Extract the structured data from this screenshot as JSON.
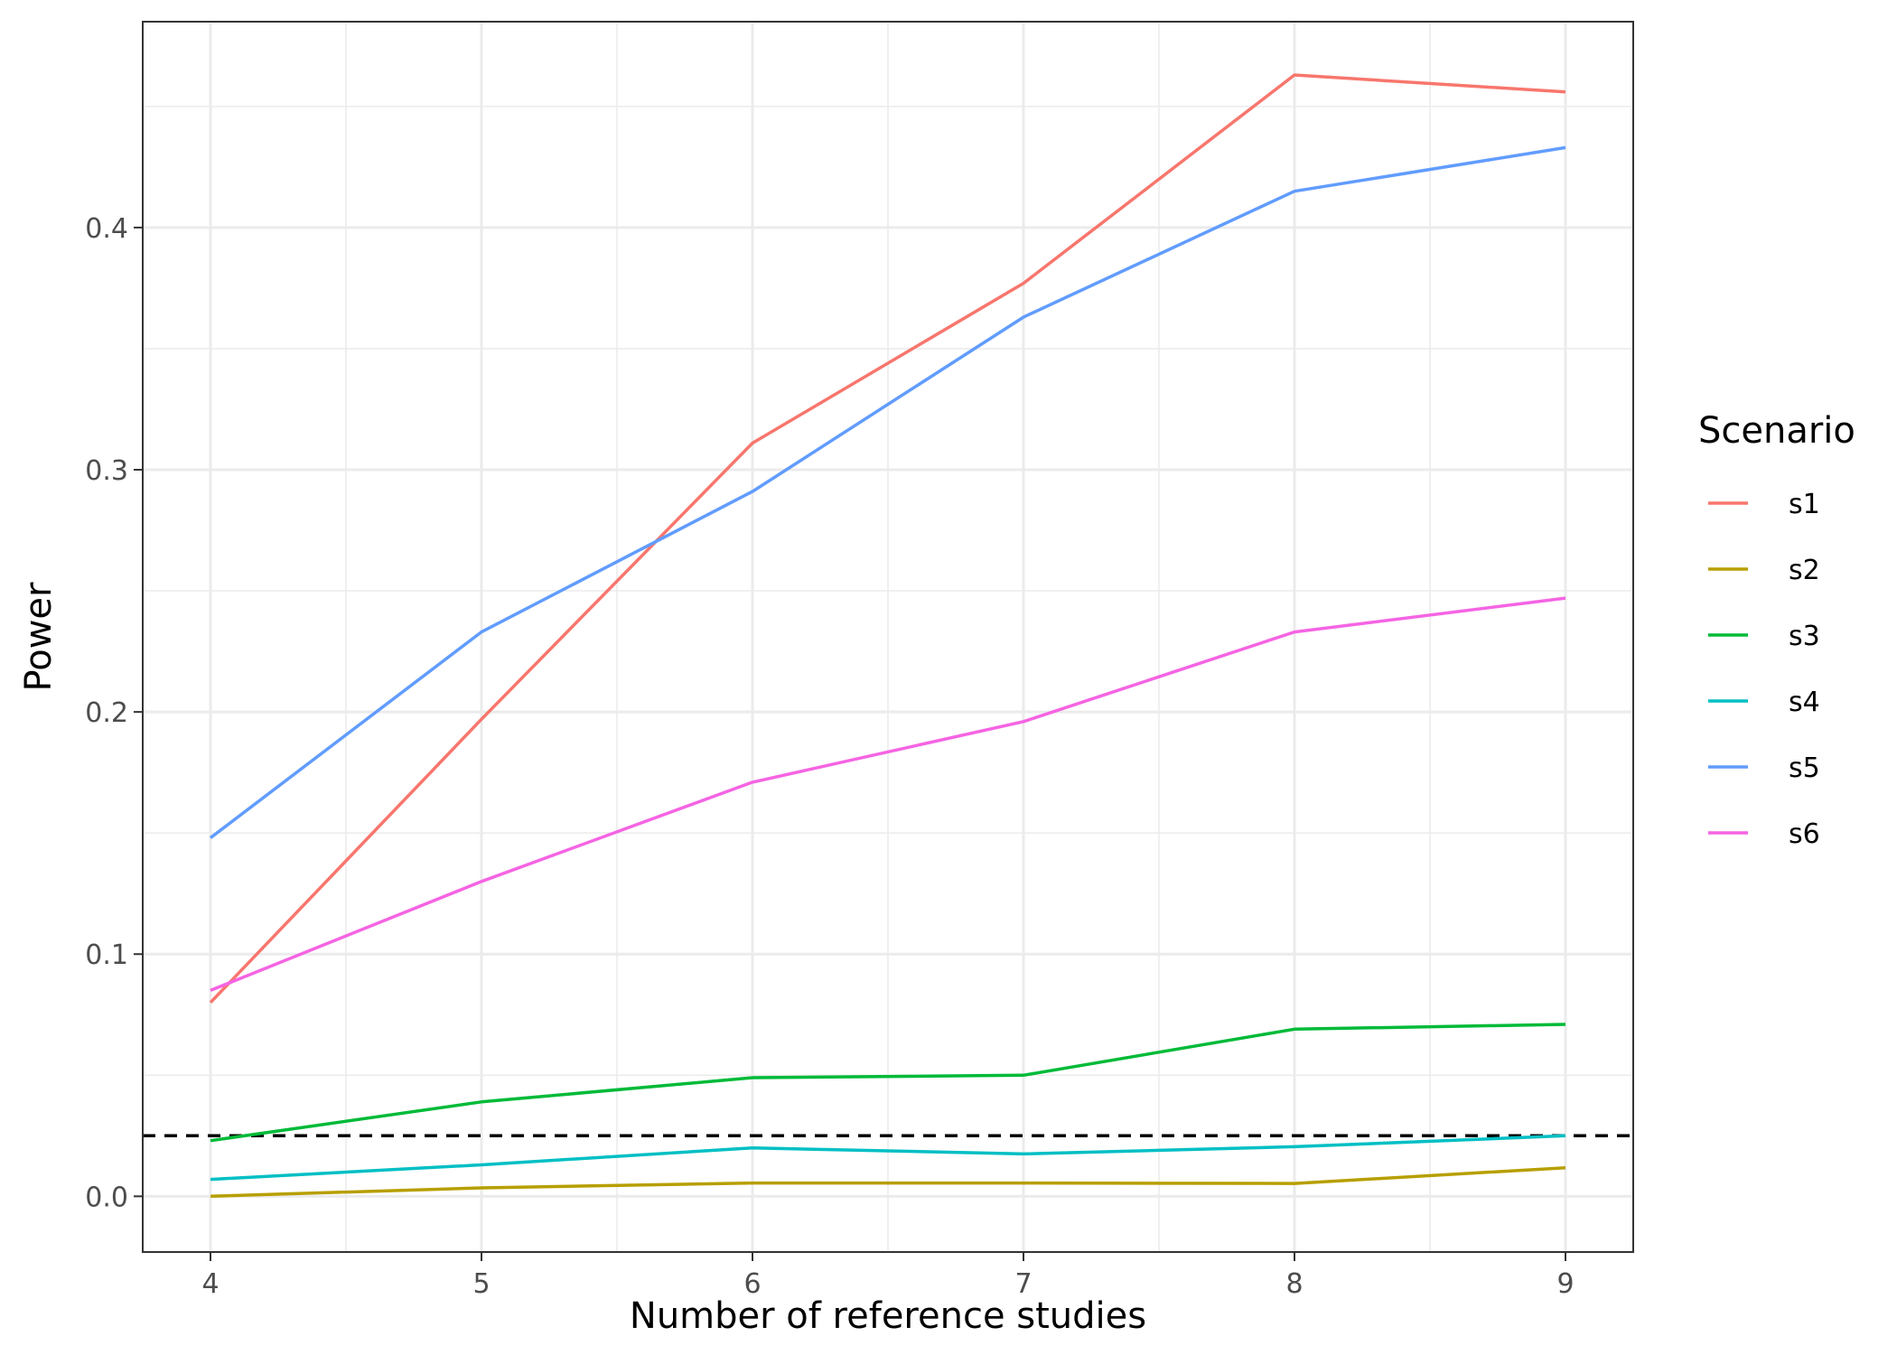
{
  "chart_data": {
    "type": "line",
    "xlabel": "Number of reference studies",
    "ylabel": "Power",
    "x": [
      4,
      5,
      6,
      7,
      8,
      9
    ],
    "xlim": [
      3.75,
      9.25
    ],
    "ylim": [
      -0.023,
      0.485
    ],
    "x_ticks": [
      4,
      5,
      6,
      7,
      8,
      9
    ],
    "x_tick_labels": [
      "4",
      "5",
      "6",
      "7",
      "8",
      "9"
    ],
    "y_ticks": [
      0.0,
      0.1,
      0.2,
      0.3,
      0.4
    ],
    "y_tick_labels": [
      "0.0",
      "0.1",
      "0.2",
      "0.3",
      "0.4"
    ],
    "grid": true,
    "legend_title": "Scenario",
    "legend_position": "right",
    "reference_line": {
      "y": 0.025,
      "style": "dashed",
      "color": "#000000"
    },
    "series": [
      {
        "name": "s1",
        "color": "#F8766D",
        "values": [
          0.08,
          0.197,
          0.311,
          0.377,
          0.463,
          0.456
        ]
      },
      {
        "name": "s2",
        "color": "#B79F00",
        "values": [
          0.0,
          0.0035,
          0.0055,
          0.0055,
          0.0053,
          0.0118
        ]
      },
      {
        "name": "s3",
        "color": "#00BA38",
        "values": [
          0.023,
          0.039,
          0.049,
          0.05,
          0.069,
          0.071
        ]
      },
      {
        "name": "s4",
        "color": "#00BFC4",
        "values": [
          0.007,
          0.013,
          0.02,
          0.0175,
          0.0205,
          0.025
        ]
      },
      {
        "name": "s5",
        "color": "#619CFF",
        "values": [
          0.148,
          0.233,
          0.291,
          0.363,
          0.415,
          0.433
        ]
      },
      {
        "name": "s6",
        "color": "#F564E3",
        "values": [
          0.085,
          0.13,
          0.171,
          0.196,
          0.233,
          0.247
        ]
      }
    ]
  }
}
